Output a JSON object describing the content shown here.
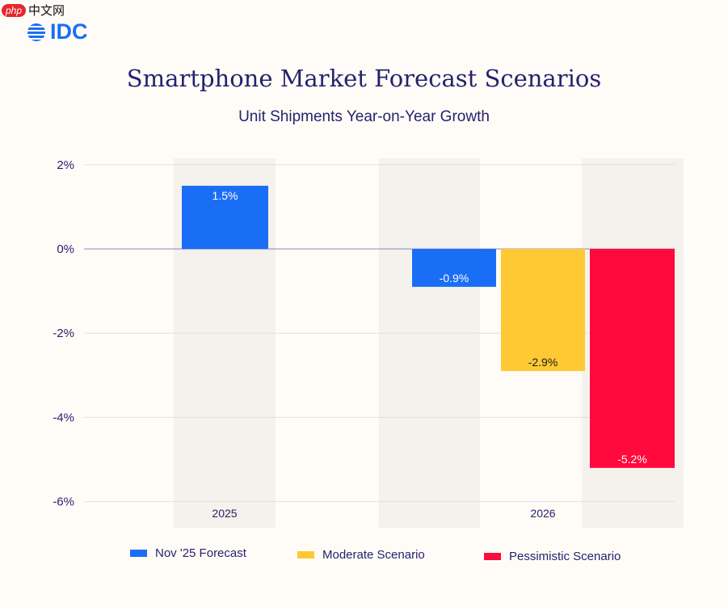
{
  "watermark": {
    "badge": "php",
    "text": "中文网"
  },
  "logo": {
    "text": "IDC"
  },
  "chart_data": {
    "type": "bar",
    "title": "Smartphone Market Forecast Scenarios",
    "subtitle": "Unit Shipments Year-on-Year Growth",
    "categories": [
      "2025",
      "2026"
    ],
    "ylim": [
      -6,
      2
    ],
    "yticks": [
      2,
      0,
      -2,
      -4,
      -6
    ],
    "ytick_labels": [
      "2%",
      "0%",
      "-2%",
      "-4%",
      "-6%"
    ],
    "grid": true,
    "legend_position": "bottom",
    "series": [
      {
        "name": "Nov '25 Forecast",
        "color": "#1a6ef5",
        "values": [
          1.5,
          -0.9
        ],
        "labels": [
          "1.5%",
          "-0.9%"
        ],
        "label_color": "#ffffff"
      },
      {
        "name": "Moderate Scenario",
        "color": "#ffc933",
        "values": [
          null,
          -2.9
        ],
        "labels": [
          null,
          "-2.9%"
        ],
        "label_color": "#1a1a1a"
      },
      {
        "name": "Pessimistic Scenario",
        "color": "#ff0a3c",
        "values": [
          null,
          -5.2
        ],
        "labels": [
          null,
          "-5.2%"
        ],
        "label_color": "#ffffff"
      }
    ]
  }
}
